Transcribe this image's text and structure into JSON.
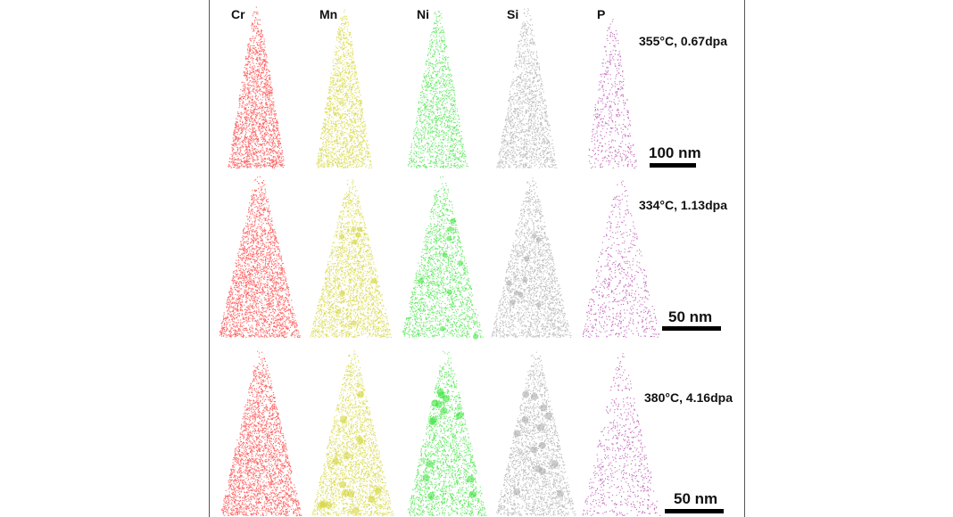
{
  "element_labels": [
    "Cr",
    "Mn",
    "Ni",
    "Si",
    "P"
  ],
  "element_colors": [
    "#ff3030",
    "#d2d22a",
    "#33e233",
    "#a8a8a8",
    "#b03aa5"
  ],
  "rows": [
    {
      "condition": "355°C, 0.67dpa",
      "scale_label": "100 nm"
    },
    {
      "condition": "334°C, 1.13dpa",
      "scale_label": "50 nm"
    },
    {
      "condition": "380°C, 4.16dpa",
      "scale_label": "50 nm"
    }
  ]
}
